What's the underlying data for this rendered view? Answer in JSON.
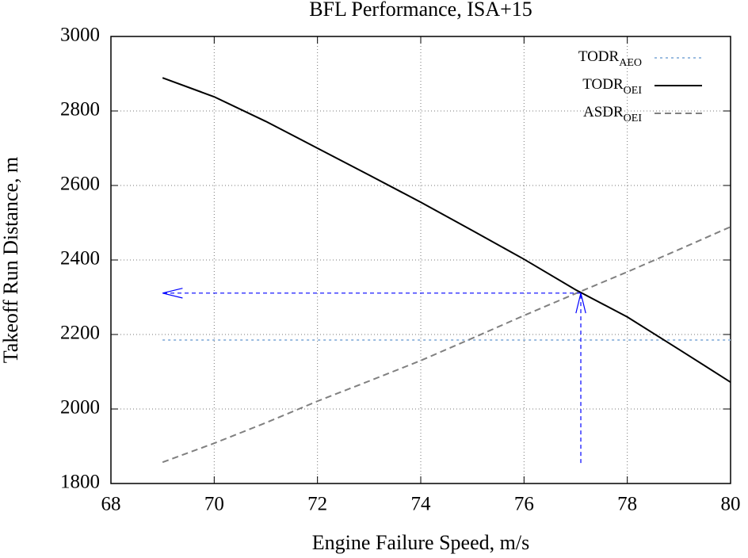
{
  "chart_data": {
    "type": "line",
    "title": "BFL Performance, ISA+15",
    "xlabel": "Engine Failure Speed, m/s",
    "ylabel": "Takeoff Run Distance, m",
    "x": [
      69,
      70,
      71,
      72,
      73,
      74,
      75,
      76,
      77,
      78,
      79,
      80
    ],
    "series": [
      {
        "name": "TODR",
        "subscript": "AEO",
        "color": "#9bbce0",
        "dash": "dotted",
        "values": [
          2185,
          2185,
          2185,
          2185,
          2185,
          2185,
          2185,
          2185,
          2185,
          2185,
          2185,
          2185
        ]
      },
      {
        "name": "TODR",
        "subscript": "OEI",
        "color": "#000000",
        "dash": "solid",
        "values": [
          2889,
          2838,
          2772,
          2700,
          2628,
          2555,
          2479,
          2402,
          2320,
          2247,
          2160,
          2072
        ]
      },
      {
        "name": "ASDR",
        "subscript": "OEI",
        "color": "#808080",
        "dash": "dashed",
        "values": [
          1857,
          1908,
          1963,
          2021,
          2075,
          2130,
          2190,
          2251,
          2310,
          2368,
          2428,
          2489
        ]
      }
    ],
    "arrows": [
      {
        "from": [
          77.1,
          1855
        ],
        "to": [
          77.1,
          2311
        ],
        "color": "#0000ff"
      },
      {
        "from": [
          77.1,
          2311
        ],
        "to": [
          69,
          2311
        ],
        "color": "#0000ff"
      }
    ],
    "xlim": [
      68,
      80
    ],
    "xticks": [
      68,
      70,
      72,
      74,
      76,
      78,
      80
    ],
    "ylim": [
      1800,
      3000
    ],
    "yticks": [
      1800,
      2000,
      2200,
      2400,
      2600,
      2800,
      3000
    ],
    "grid": true,
    "legend": "top-right"
  }
}
